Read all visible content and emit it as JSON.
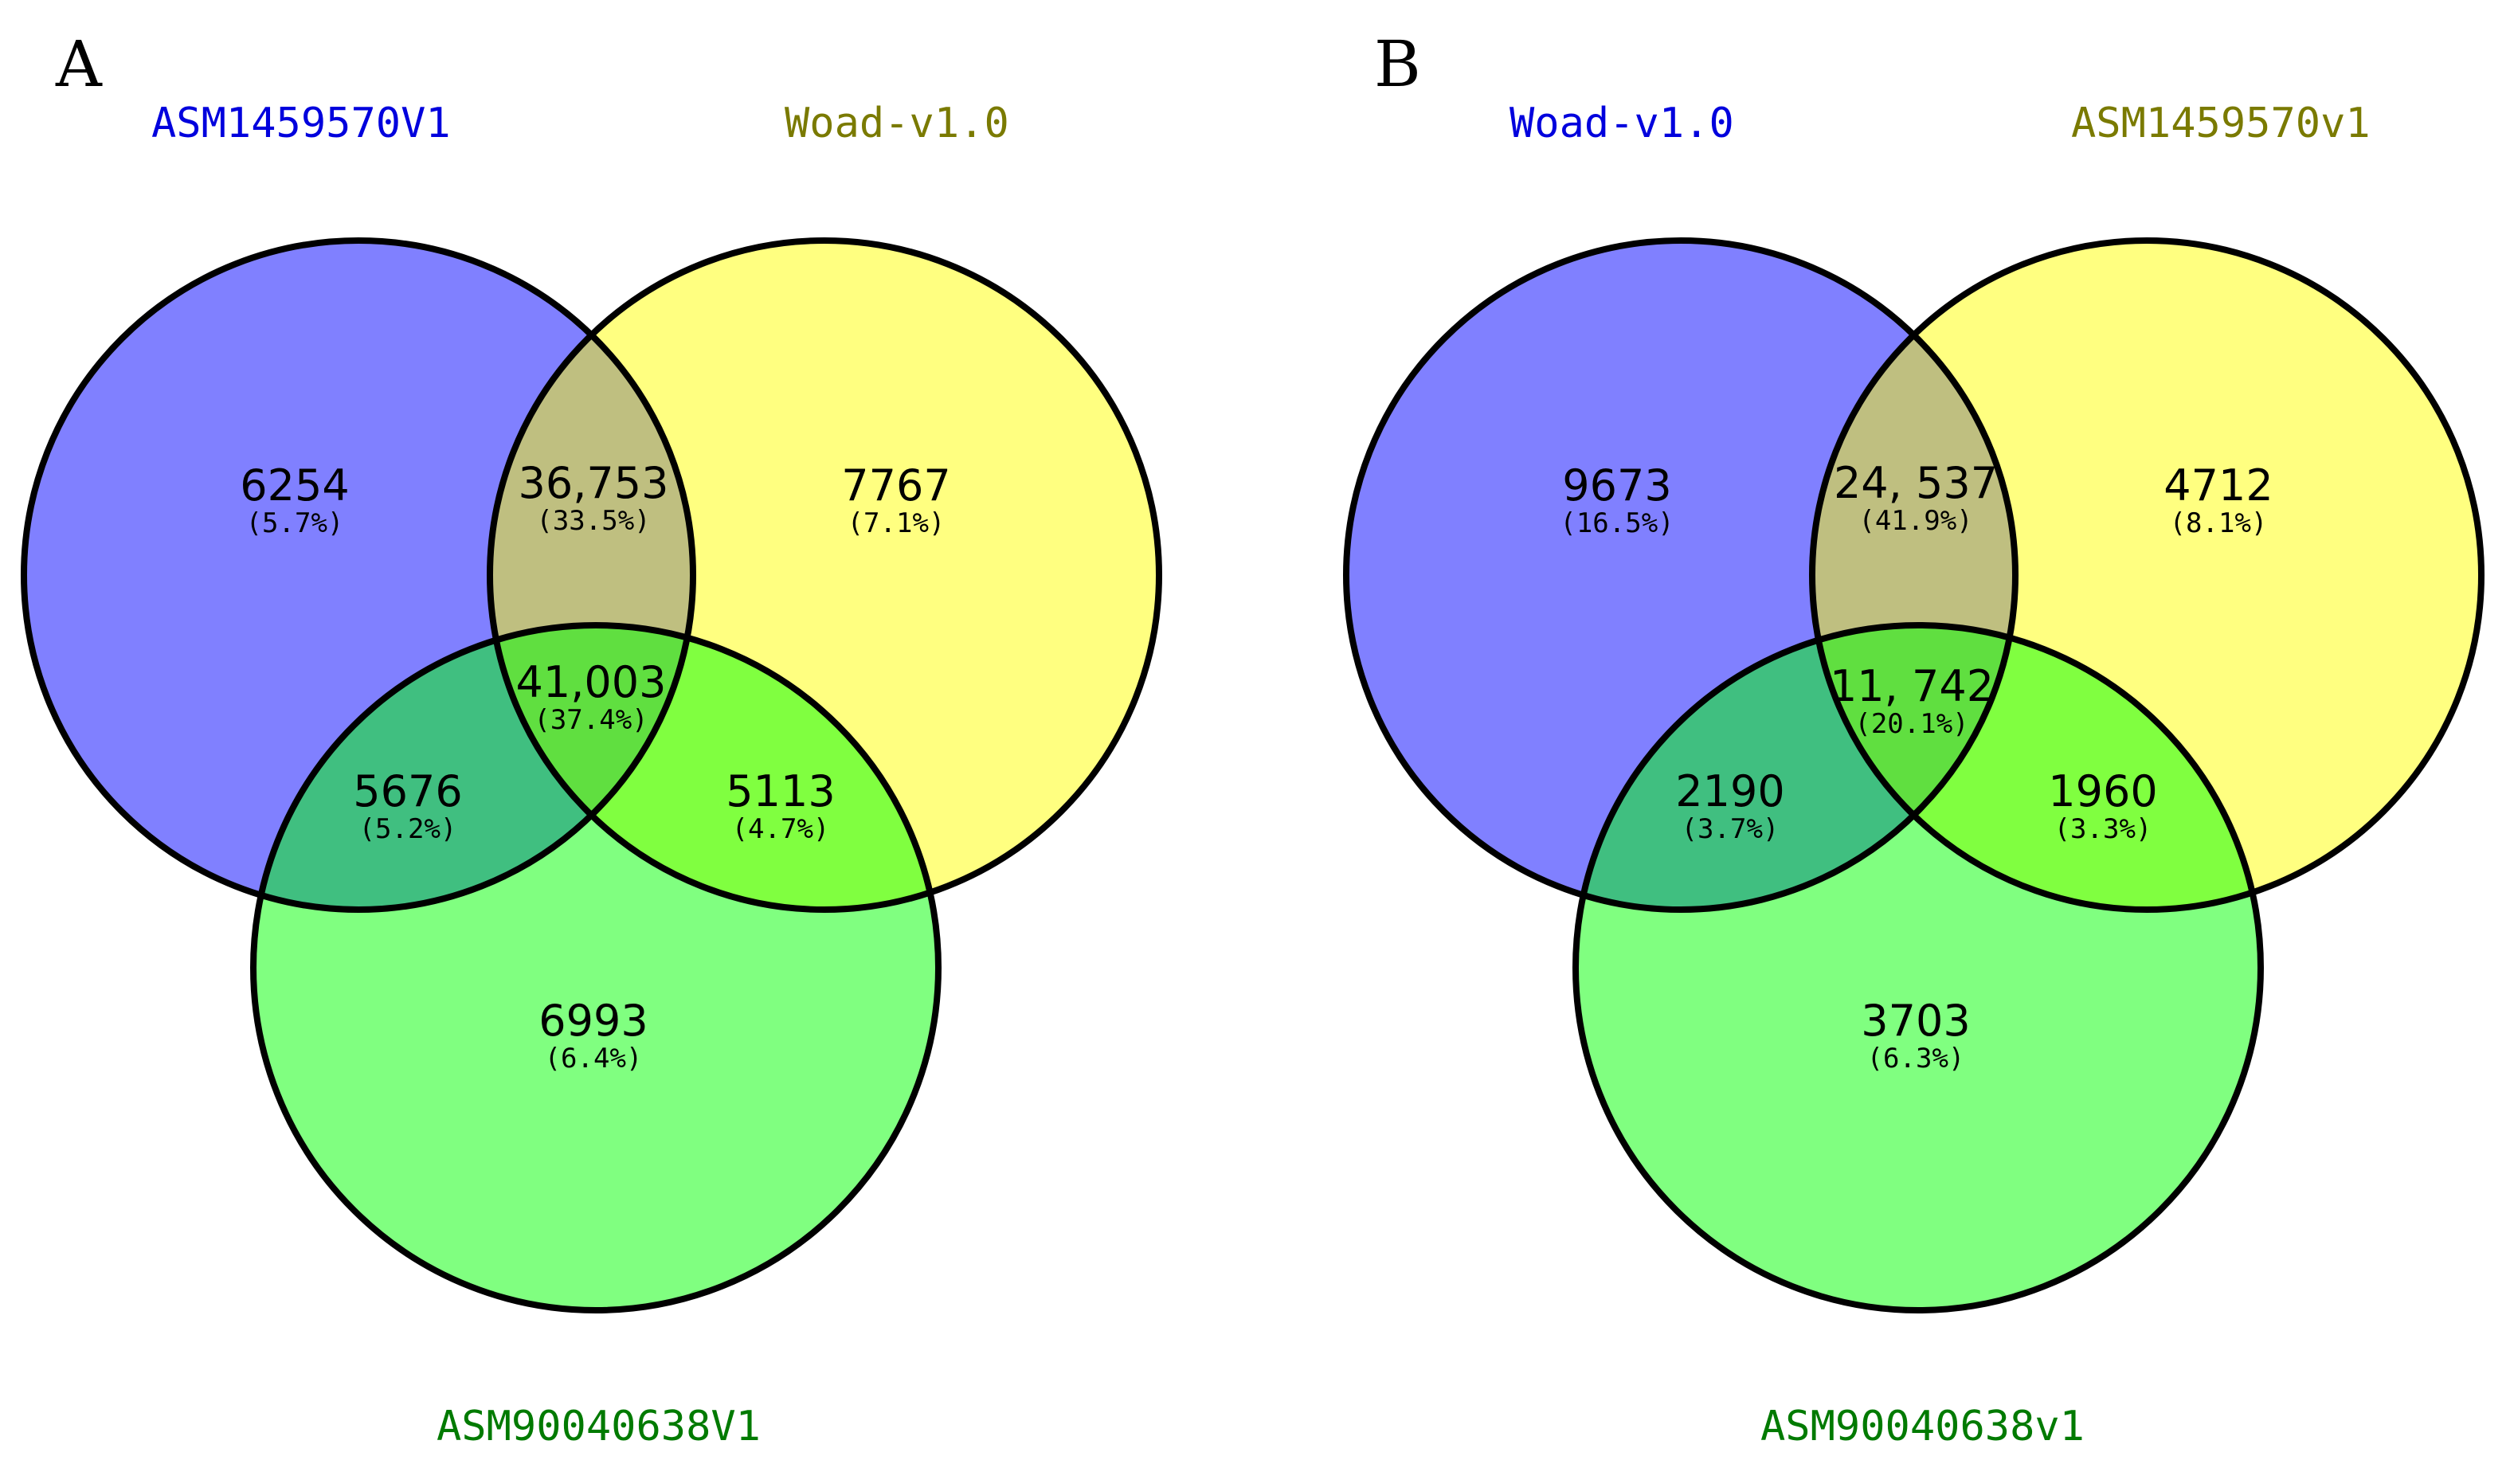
{
  "colors": {
    "blue_set": "#8080ff",
    "yellow_set": "#ffff80",
    "green_set": "#80ff80",
    "blue_yellow": "#bfbf80",
    "blue_green": "#40bf80",
    "yellow_green": "#80ff40",
    "all_three": "#60df40",
    "label_blue": "#0000dd",
    "label_olive": "#7a7a00",
    "label_green": "#007a00"
  },
  "panels": [
    {
      "letter": "A",
      "sets": {
        "top_left": "ASM1459570V1",
        "top_right": "Woad-v1.0",
        "bottom": "ASM90040638V1"
      },
      "regions": {
        "left_only": {
          "count": "6254",
          "pct": "(5.7%)"
        },
        "left_right": {
          "count": "36,753",
          "pct": "(33.5%)"
        },
        "right_only": {
          "count": "7767",
          "pct": "(7.1%)"
        },
        "all_three": {
          "count": "41,003",
          "pct": "(37.4%)"
        },
        "left_bottom": {
          "count": "5676",
          "pct": "(5.2%)"
        },
        "right_bottom": {
          "count": "5113",
          "pct": "(4.7%)"
        },
        "bottom_only": {
          "count": "6993",
          "pct": "(6.4%)"
        }
      }
    },
    {
      "letter": "B",
      "sets": {
        "top_left": "Woad-v1.0",
        "top_right": "ASM1459570v1",
        "bottom": "ASM90040638v1"
      },
      "regions": {
        "left_only": {
          "count": "9673",
          "pct": "(16.5%)"
        },
        "left_right": {
          "count": "24, 537",
          "pct": "(41.9%)"
        },
        "right_only": {
          "count": "4712",
          "pct": "(8.1%)"
        },
        "all_three": {
          "count": "11, 742",
          "pct": "(20.1%)"
        },
        "left_bottom": {
          "count": "2190",
          "pct": "(3.7%)"
        },
        "right_bottom": {
          "count": "1960",
          "pct": "(3.3%)"
        },
        "bottom_only": {
          "count": "3703",
          "pct": "(6.3%)"
        }
      }
    }
  ]
}
